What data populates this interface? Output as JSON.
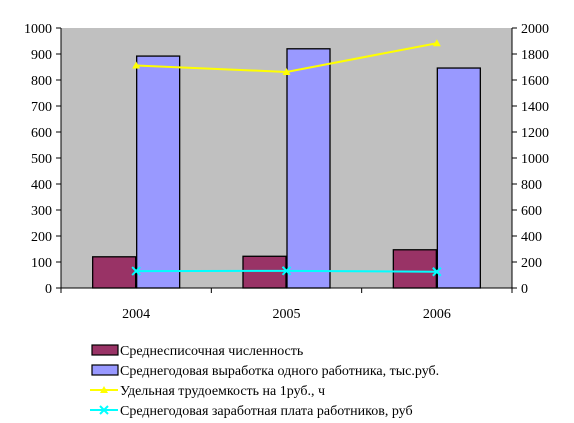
{
  "chart_data": {
    "type": "bar",
    "categories": [
      "2004",
      "2005",
      "2006"
    ],
    "y_left": {
      "min": 0,
      "max": 1000,
      "step": 100
    },
    "y_right": {
      "min": 0,
      "max": 2000,
      "step": 200
    },
    "grid": false,
    "legend_position": "bottom",
    "plot_background": "#c0c0c0",
    "series": [
      {
        "name": "Среднесписочная численность",
        "kind": "bar",
        "axis": "left",
        "color": "#993366",
        "values": [
          120,
          122,
          147
        ]
      },
      {
        "name": "Среднегодовая выработка одного работника, тыс.руб.",
        "kind": "bar",
        "axis": "left",
        "color": "#9999ff",
        "values": [
          892,
          920,
          846
        ]
      },
      {
        "name": "Удельная трудоемкость на 1руб., ч",
        "kind": "line",
        "axis": "right",
        "color": "#ffff00",
        "marker": "triangle",
        "values": [
          1712,
          1662,
          1883
        ]
      },
      {
        "name": "Среднегодовая заработная плата работников, руб",
        "kind": "line",
        "axis": "right",
        "color": "#00ffff",
        "marker": "x",
        "values": [
          130,
          132,
          125
        ]
      }
    ]
  }
}
